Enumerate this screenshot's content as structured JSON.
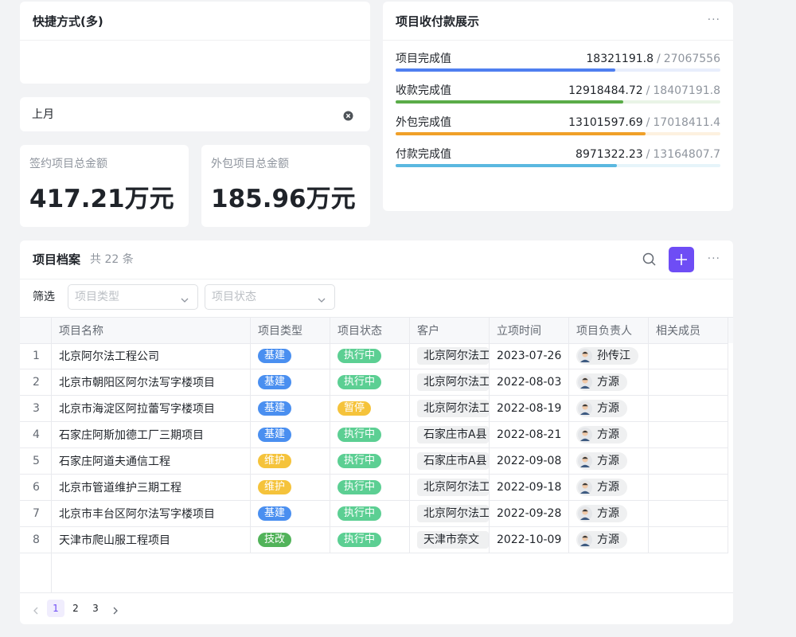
{
  "shortcuts": {
    "title": "快捷方式(多)"
  },
  "date_filter": {
    "value": "上月"
  },
  "stats": [
    {
      "label": "签约项目总金额",
      "value": "417.21万元"
    },
    {
      "label": "外包项目总金额",
      "value": "185.96万元"
    }
  ],
  "payments": {
    "title": "项目收付款展示",
    "menu": "···",
    "separator": "/",
    "items": [
      {
        "label": "项目完成值",
        "value": 18321191.8,
        "total": 27067556,
        "color": "#4f7ff0",
        "track": "#e8eefc"
      },
      {
        "label": "收款完成值",
        "value": 12918484.72,
        "total": 18407191.8,
        "color": "#5aac48",
        "track": "#e9f4e6"
      },
      {
        "label": "外包完成值",
        "value": 13101597.69,
        "total": 17018411.4,
        "color": "#f0a029",
        "track": "#fdf1e0"
      },
      {
        "label": "付款完成值",
        "value": 8971322.23,
        "total": 13164807.7,
        "color": "#5ab8e0",
        "track": "#e6f4fa"
      }
    ]
  },
  "archive": {
    "title": "项目档案",
    "count": "共 22 条",
    "menu": "···",
    "filter_label": "筛选",
    "filters": [
      "项目类型",
      "项目状态"
    ],
    "columns": [
      "项目名称",
      "项目类型",
      "项目状态",
      "客户",
      "立项时间",
      "项目负责人",
      "相关成员"
    ],
    "rows": [
      {
        "index": "1",
        "name": "北京阿尔法工程公司",
        "type": {
          "text": "基建",
          "color": "#4a8ff0"
        },
        "status": {
          "text": "执行中",
          "color": "#5ccf93"
        },
        "customer": "北京阿尔法工",
        "date": "2023-07-26",
        "owner": "孙传江"
      },
      {
        "index": "2",
        "name": "北京市朝阳区阿尔法写字楼项目",
        "type": {
          "text": "基建",
          "color": "#4a8ff0"
        },
        "status": {
          "text": "执行中",
          "color": "#5ccf93"
        },
        "customer": "北京阿尔法工",
        "date": "2022-08-03",
        "owner": "方源"
      },
      {
        "index": "3",
        "name": "北京市海淀区阿拉蕾写字楼项目",
        "type": {
          "text": "基建",
          "color": "#4a8ff0"
        },
        "status": {
          "text": "暂停",
          "color": "#f5c33b"
        },
        "customer": "北京阿尔法工",
        "date": "2022-08-19",
        "owner": "方源"
      },
      {
        "index": "4",
        "name": "石家庄阿斯加德工厂三期项目",
        "type": {
          "text": "基建",
          "color": "#4a8ff0"
        },
        "status": {
          "text": "执行中",
          "color": "#5ccf93"
        },
        "customer": "石家庄市A县",
        "date": "2022-08-21",
        "owner": "方源"
      },
      {
        "index": "5",
        "name": "石家庄阿道夫通信工程",
        "type": {
          "text": "维护",
          "color": "#f5c33b"
        },
        "status": {
          "text": "执行中",
          "color": "#5ccf93"
        },
        "customer": "石家庄市A县",
        "date": "2022-09-08",
        "owner": "方源"
      },
      {
        "index": "6",
        "name": "北京市管道维护三期工程",
        "type": {
          "text": "维护",
          "color": "#f5c33b"
        },
        "status": {
          "text": "执行中",
          "color": "#5ccf93"
        },
        "customer": "北京阿尔法工",
        "date": "2022-09-18",
        "owner": "方源"
      },
      {
        "index": "7",
        "name": "北京市丰台区阿尔法写字楼项目",
        "type": {
          "text": "基建",
          "color": "#4a8ff0"
        },
        "status": {
          "text": "执行中",
          "color": "#5ccf93"
        },
        "customer": "北京阿尔法工",
        "date": "2022-09-28",
        "owner": "方源"
      },
      {
        "index": "8",
        "name": "天津市爬山服工程项目",
        "type": {
          "text": "技改",
          "color": "#52b35a"
        },
        "status": {
          "text": "执行中",
          "color": "#5ccf93"
        },
        "customer": "天津市奈文",
        "date": "2022-10-09",
        "owner": "方源"
      }
    ],
    "pages": [
      "1",
      "2",
      "3"
    ]
  }
}
